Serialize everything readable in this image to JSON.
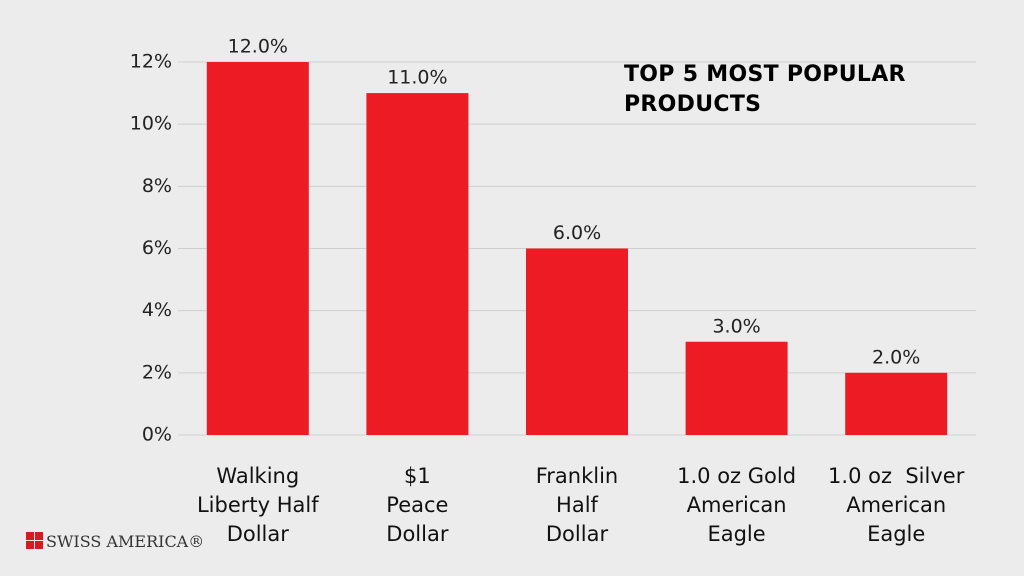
{
  "chart_data": {
    "type": "bar",
    "title": "TOP 5 MOST POPULAR PRODUCTS",
    "categories": [
      "Walking\nLiberty Half\nDollar",
      "$1\nPeace\nDollar",
      "Franklin\nHalf\nDollar",
      "1.0 oz Gold\nAmerican\nEagle",
      "1.0 oz  Silver\nAmerican\nEagle"
    ],
    "values": [
      12,
      11,
      6,
      3,
      2
    ],
    "value_labels": [
      "12.0%",
      "11.0%",
      "6.0%",
      "3.0%",
      "2.0%"
    ],
    "color": "#ed1c24",
    "ylim": [
      0,
      12
    ],
    "yticks": [
      {
        "value": 0,
        "label": "0%"
      },
      {
        "value": 2,
        "label": "2%"
      },
      {
        "value": 4,
        "label": "4%"
      },
      {
        "value": 6,
        "label": "6%"
      },
      {
        "value": 8,
        "label": "8%"
      },
      {
        "value": 10,
        "label": "10%"
      },
      {
        "value": 12,
        "label": "12%"
      }
    ],
    "grid": true
  },
  "logo": "SWISS AMERICA®"
}
